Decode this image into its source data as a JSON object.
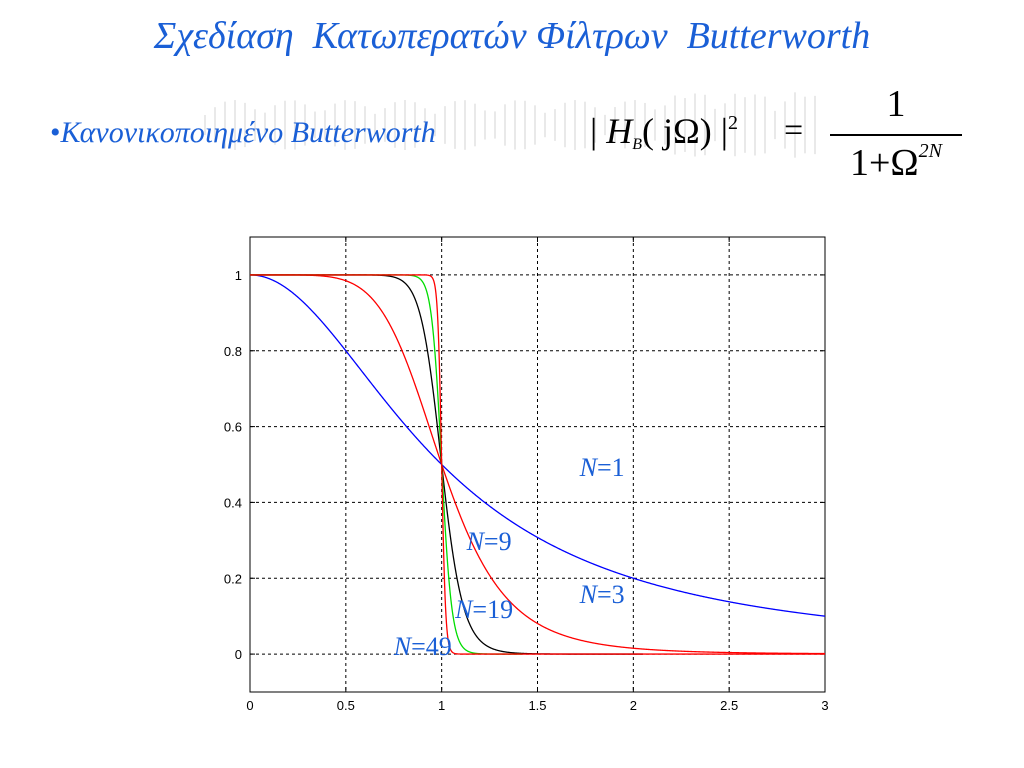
{
  "slide": {
    "title": "Σχεδίαση  Κατωπερατών Φίλτρων  Butterworth",
    "bullet_marker": "•",
    "bullet_text": "Κανονικοποιημένο Butterworth"
  },
  "formula": {
    "lhs_open": "| ",
    "lhs_H": "H",
    "lhs_sub": "B",
    "lhs_arg": "( jΩ) |",
    "lhs_sup": "2",
    "equals": "=",
    "numerator": "1",
    "denominator_base": "1+Ω",
    "denominator_exp": "2N"
  },
  "colors": {
    "title": "#1a5fd6",
    "annotation": "#1a5fd6",
    "N1": "#0000ff",
    "N3": "#ff0000",
    "N9": "#000000",
    "N19": "#00dd00",
    "N49": "#ff0000",
    "grid": "#000000"
  },
  "chart_data": {
    "type": "line",
    "function": "1/(1+x^(2N))",
    "x_range": [
      0,
      3
    ],
    "xlim": [
      0,
      3
    ],
    "ylim": [
      -0.1,
      1.1
    ],
    "xticks": [
      "0",
      "0.5",
      "1",
      "1.5",
      "2",
      "2.5",
      "3"
    ],
    "yticks": [
      "0",
      "0.2",
      "0.4",
      "0.6",
      "0.8",
      "1"
    ],
    "grid": true,
    "series": [
      {
        "name": "N=1",
        "order": 1,
        "x_max": 3,
        "color_key": "N1",
        "label_var": "N",
        "label_rest": "=1",
        "label_at": [
          1.72,
          0.47
        ]
      },
      {
        "name": "N=3",
        "order": 3,
        "x_max": 3,
        "color_key": "N3",
        "label_var": "N",
        "label_rest": "=3",
        "label_at": [
          1.72,
          0.135
        ]
      },
      {
        "name": "N=9",
        "order": 9,
        "x_max": 2.05,
        "color_key": "N9",
        "label_var": "N",
        "label_rest": "=9",
        "label_at": [
          1.13,
          0.275
        ]
      },
      {
        "name": "N=19",
        "order": 19,
        "x_max": 1.42,
        "color_key": "N19",
        "label_var": "N",
        "label_rest": "=19",
        "label_at": [
          1.07,
          0.095
        ]
      },
      {
        "name": "N=49",
        "order": 49,
        "x_max": 3,
        "color_key": "N49",
        "label_var": "N",
        "label_rest": "=49",
        "label_at": [
          0.75,
          -0.003
        ]
      }
    ]
  }
}
